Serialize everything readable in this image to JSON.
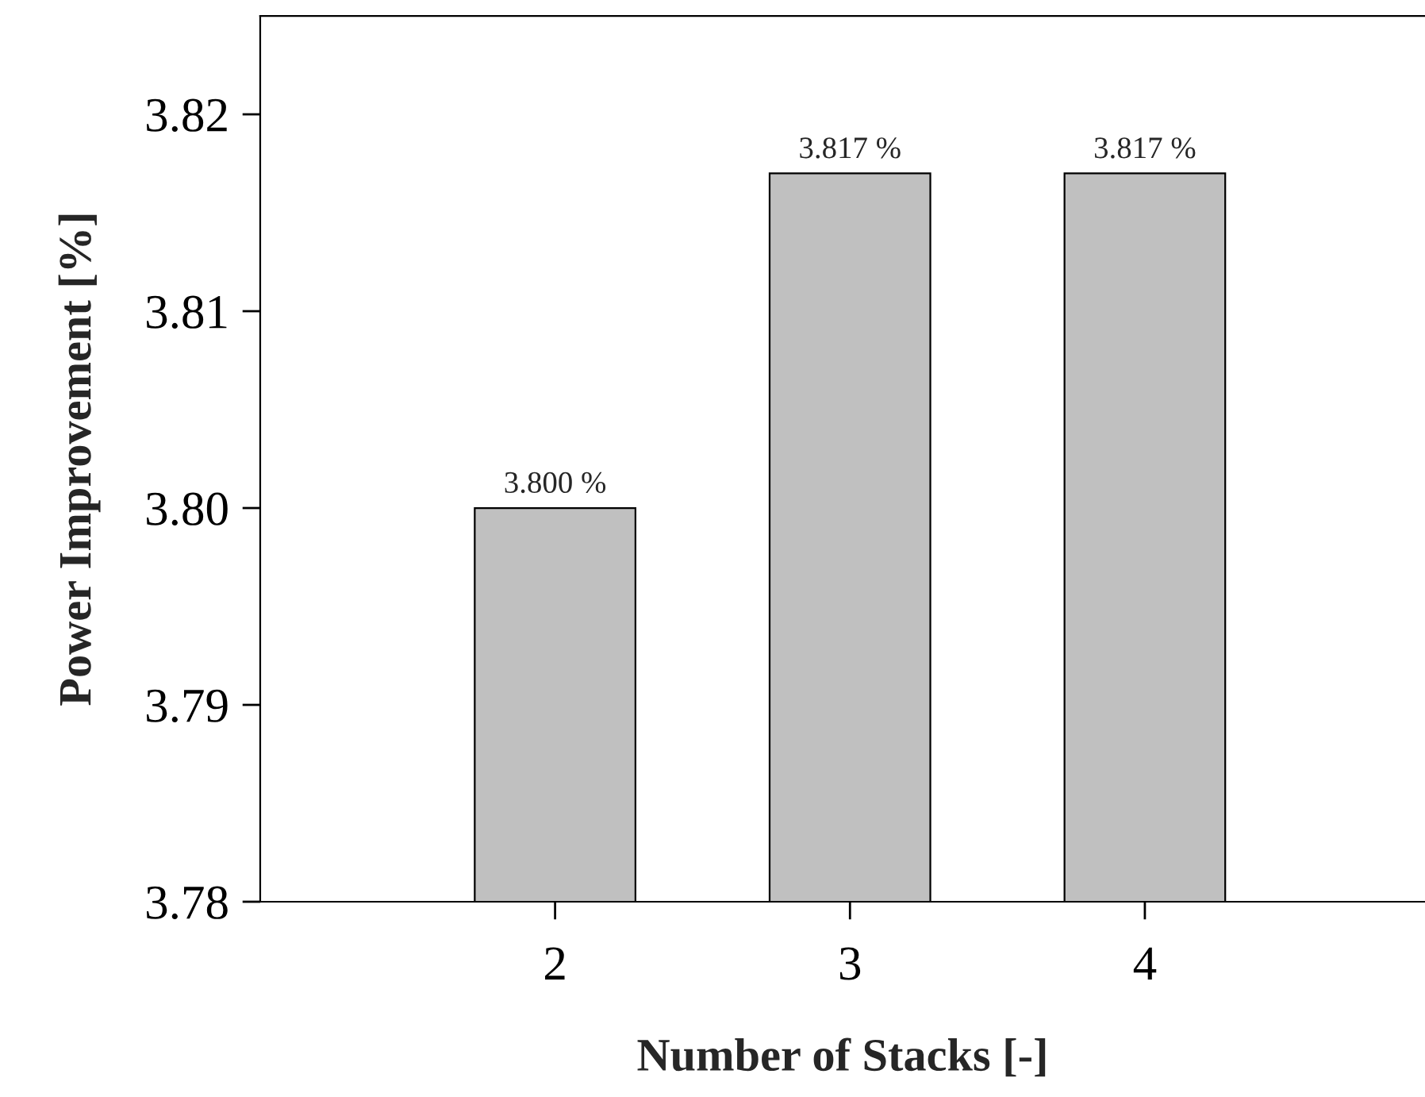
{
  "chart_data": {
    "type": "bar",
    "xlabel": "Number of Stacks [-]",
    "ylabel": "Power Improvement [%]",
    "categories": [
      "2",
      "3",
      "4"
    ],
    "values": [
      3.8,
      3.817,
      3.817
    ],
    "value_labels": [
      "3.800 %",
      "3.817 %",
      "3.817 %"
    ],
    "color": "#c0c0c0",
    "ylim": [
      3.78,
      3.825
    ],
    "yticks": [
      {
        "value": 3.78,
        "label": "3.78"
      },
      {
        "value": 3.79,
        "label": "3.79"
      },
      {
        "value": 3.8,
        "label": "3.80"
      },
      {
        "value": 3.81,
        "label": "3.81"
      },
      {
        "value": 3.82,
        "label": "3.82"
      }
    ],
    "grid": false,
    "legend": false
  }
}
